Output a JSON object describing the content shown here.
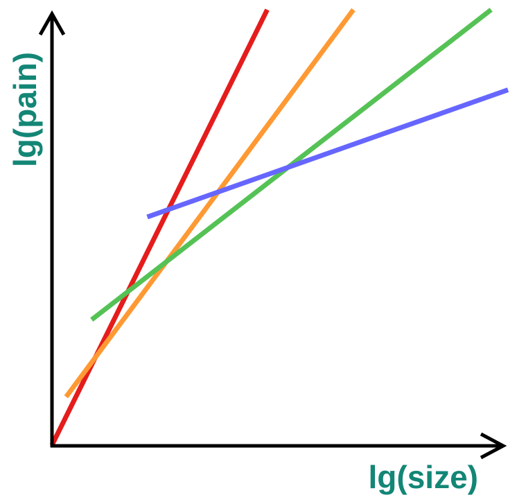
{
  "chart_data": {
    "type": "line",
    "title": "",
    "xlabel": "lg(size)",
    "ylabel": "lg(pain)",
    "xlim": [
      0,
      100
    ],
    "ylim": [
      0,
      100
    ],
    "grid": false,
    "legend": "none",
    "axis_color": "#000000",
    "label_color": "#138676",
    "series": [
      {
        "color": "#e51c1c",
        "points": [
          [
            0,
            0
          ],
          [
            47.2,
            100
          ]
        ]
      },
      {
        "color": "#ff9933",
        "points": [
          [
            3.1,
            11.1
          ],
          [
            66.1,
            100
          ]
        ]
      },
      {
        "color": "#55c255",
        "points": [
          [
            8.7,
            28.8
          ],
          [
            96.3,
            100
          ]
        ]
      },
      {
        "color": "#6666ff",
        "points": [
          [
            20.9,
            52.4
          ],
          [
            100,
            81.6
          ]
        ]
      }
    ]
  }
}
